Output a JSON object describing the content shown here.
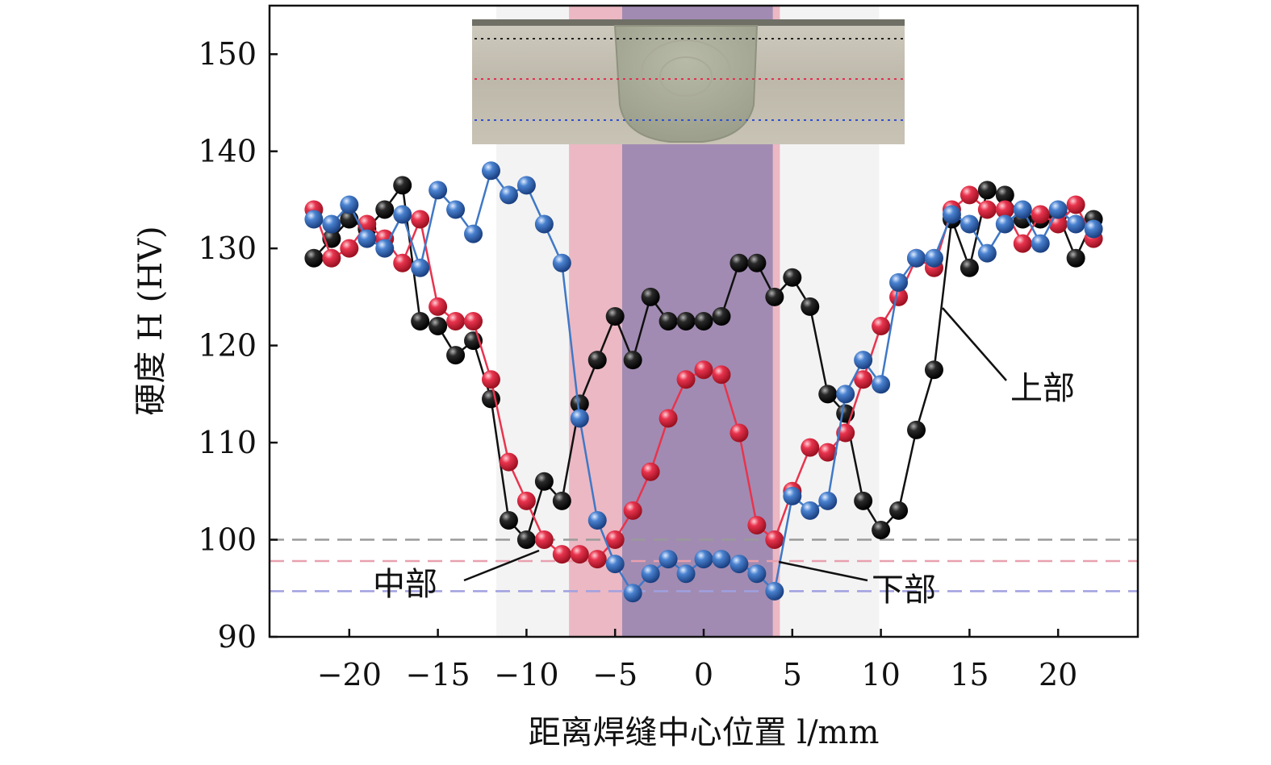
{
  "chart_data": {
    "type": "scatter",
    "title": "",
    "xlabel": "距离焊缝中心位置 l/mm",
    "ylabel": "硬度 H (HV)",
    "xlim": [
      -24.5,
      24.5
    ],
    "ylim": [
      90,
      155
    ],
    "x_ticks": [
      -20,
      -15,
      -10,
      -5,
      0,
      5,
      10,
      15,
      20
    ],
    "x_tick_labels": [
      "−20",
      "−15",
      "−10",
      "−5",
      "0",
      "5",
      "10",
      "15",
      "20"
    ],
    "y_ticks": [
      90,
      100,
      110,
      120,
      130,
      140,
      150
    ],
    "y_tick_labels": [
      "90",
      "100",
      "110",
      "120",
      "130",
      "140",
      "150"
    ],
    "grid": false,
    "regions": [
      {
        "x0": -11.7,
        "x1": 9.9,
        "color": "#e9e9e9"
      },
      {
        "x0": -7.6,
        "x1": 4.3,
        "color": "#e9a9b6"
      },
      {
        "x0": -4.6,
        "x1": 3.9,
        "color": "#8e7fae"
      }
    ],
    "reference_lines": [
      {
        "y": 100.0,
        "color": "#9a9a9a"
      },
      {
        "y": 97.8,
        "color": "#e8a0ae"
      },
      {
        "y": 94.7,
        "color": "#a0a0e0"
      }
    ],
    "series": [
      {
        "name": "上部",
        "color": "#111111",
        "x": [
          -22,
          -21,
          -20,
          -19,
          -18,
          -17,
          -16,
          -15,
          -14,
          -13,
          -12,
          -11,
          -10,
          -9,
          -8,
          -7,
          -6,
          -5,
          -4,
          -3,
          -2,
          -1,
          0,
          1,
          2,
          3,
          4,
          5,
          6,
          7,
          8,
          9,
          10,
          11,
          12,
          13,
          14,
          15,
          16,
          17,
          18,
          19,
          20,
          21,
          22
        ],
        "y": [
          129,
          131,
          133,
          132,
          134,
          136.5,
          122.5,
          122,
          119,
          120.5,
          114.5,
          102,
          100,
          106,
          104,
          114,
          118.5,
          123,
          118.5,
          125,
          122.5,
          122.5,
          122.5,
          123,
          128.5,
          128.5,
          125,
          127,
          124,
          115,
          113,
          104,
          101,
          103,
          111.3,
          117.5,
          133,
          128,
          136,
          135.5,
          133,
          133,
          133.5,
          129,
          133
        ]
      },
      {
        "name": "中部",
        "color": "#e8344e",
        "x": [
          -22,
          -21,
          -20,
          -19,
          -18,
          -17,
          -16,
          -15,
          -14,
          -13,
          -12,
          -11,
          -10,
          -9,
          -8,
          -7,
          -6,
          -5,
          -4,
          -3,
          -2,
          -1,
          0,
          1,
          2,
          3,
          4,
          5,
          6,
          7,
          8,
          9,
          10,
          11,
          12,
          13,
          14,
          15,
          16,
          17,
          18,
          19,
          20,
          21,
          22
        ],
        "y": [
          134,
          129,
          130,
          132.5,
          131,
          128.5,
          133,
          124,
          122.5,
          122.5,
          116.5,
          108,
          104,
          100,
          98.5,
          98.5,
          98,
          100,
          103,
          107,
          112.5,
          116.5,
          117.5,
          117,
          111,
          101.5,
          100,
          105,
          109.5,
          109,
          111,
          116.5,
          122,
          125,
          129,
          128,
          134,
          135.5,
          134,
          134,
          130.5,
          133.5,
          132.5,
          134.5,
          131
        ]
      },
      {
        "name": "下部",
        "color": "#3f78c6",
        "x": [
          -22,
          -21,
          -20,
          -19,
          -18,
          -17,
          -16,
          -15,
          -14,
          -13,
          -12,
          -11,
          -10,
          -9,
          -8,
          -7,
          -6,
          -5,
          -4,
          -3,
          -2,
          -1,
          0,
          1,
          2,
          3,
          4,
          5,
          6,
          7,
          8,
          9,
          10,
          11,
          12,
          13,
          14,
          15,
          16,
          17,
          18,
          19,
          20,
          21,
          22
        ],
        "y": [
          133,
          132.5,
          134.5,
          131,
          130,
          133.5,
          128,
          136,
          134,
          131.5,
          138,
          135.5,
          136.5,
          132.5,
          128.5,
          112.5,
          102,
          97.5,
          94.5,
          96.5,
          98,
          96.5,
          98,
          98,
          97.5,
          96.5,
          94.7,
          104.5,
          103,
          104,
          115,
          118.5,
          116,
          126.5,
          129,
          129,
          133.5,
          132.5,
          129.5,
          132.5,
          134,
          130.5,
          134,
          132.5,
          132
        ]
      }
    ],
    "annotations": [
      {
        "text": "上部",
        "series": "上部"
      },
      {
        "text": "中部",
        "series": "中部"
      },
      {
        "text": "下部",
        "series": "下部"
      }
    ],
    "inset": {
      "description_hidden": true,
      "line_colors": [
        "#222222",
        "#e03050",
        "#3050d0"
      ]
    }
  }
}
